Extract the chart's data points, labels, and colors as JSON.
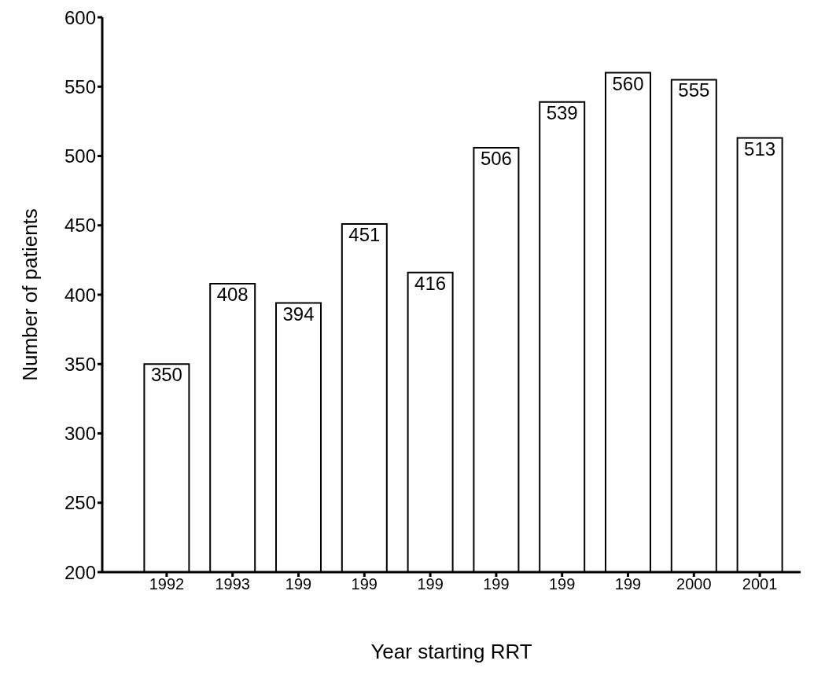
{
  "chart_data": {
    "type": "bar",
    "xlabel": "Year starting RRT",
    "ylabel": "Number of patients",
    "categories": [
      "1992",
      "1993",
      "199",
      "199",
      "199",
      "199",
      "199",
      "199",
      "2000",
      "2001"
    ],
    "values": [
      350,
      408,
      394,
      451,
      416,
      506,
      539,
      560,
      555,
      513
    ],
    "color": "#ffffff",
    "ylim": [
      200,
      600
    ],
    "yticks": [
      200,
      250,
      300,
      350,
      400,
      450,
      500,
      550,
      600
    ],
    "grid": false,
    "data_labels": true
  }
}
